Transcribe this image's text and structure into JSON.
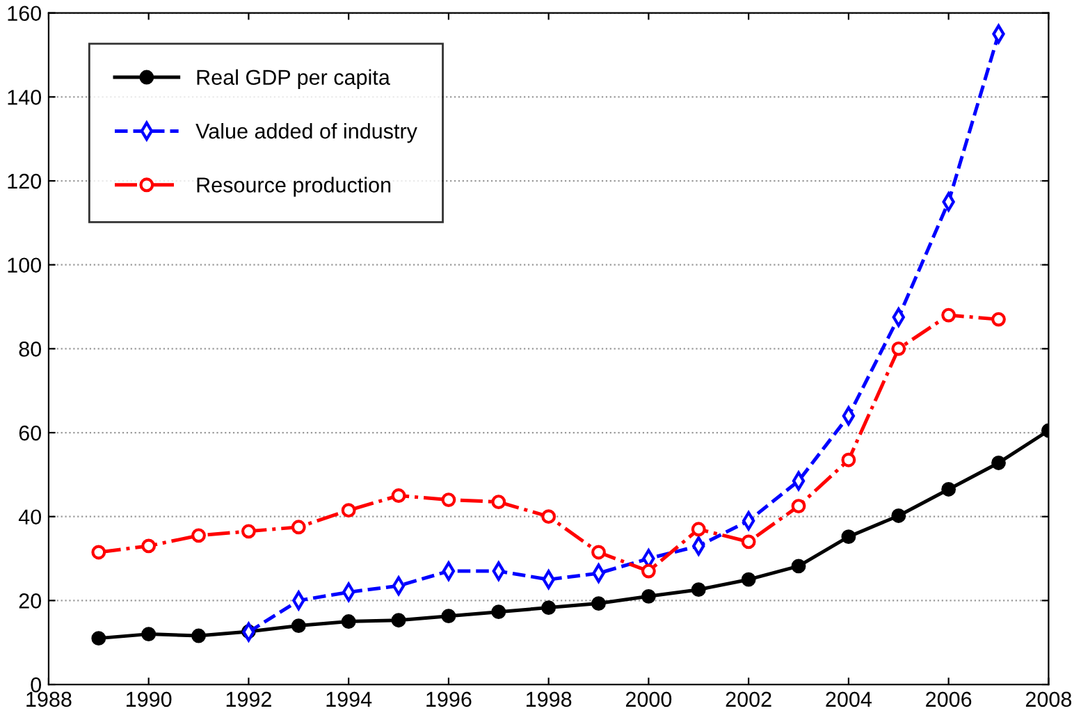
{
  "chart_data": {
    "type": "line",
    "x": [
      1989,
      1990,
      1991,
      1992,
      1993,
      1994,
      1995,
      1996,
      1997,
      1998,
      1999,
      2000,
      2001,
      2002,
      2003,
      2004,
      2005,
      2006,
      2007,
      2008
    ],
    "series": [
      {
        "name": "Real GDP per capita",
        "color": "#000000",
        "marker": "circle",
        "line_style": "solid",
        "values": [
          11,
          12,
          11.6,
          12.6,
          14,
          15,
          15.3,
          16.3,
          17.3,
          18.3,
          19.3,
          21,
          22.6,
          25,
          28.2,
          35.2,
          40.2,
          46.5,
          52.8,
          60.5
        ]
      },
      {
        "name": "Value added of industry",
        "color": "#0000ff",
        "marker": "diamond",
        "line_style": "dashed",
        "values": [
          null,
          null,
          null,
          12.5,
          20,
          22,
          23.5,
          27,
          27,
          25,
          26.5,
          30,
          33,
          39,
          48.5,
          64,
          87.5,
          115,
          155,
          null
        ]
      },
      {
        "name": "Resource production",
        "color": "#ff0000",
        "marker": "circle",
        "line_style": "dashdot",
        "values": [
          31.5,
          33,
          35.5,
          36.5,
          37.5,
          41.5,
          45,
          44,
          43.5,
          40,
          31.5,
          27,
          37,
          34,
          42.5,
          53.5,
          80,
          88,
          87,
          null
        ]
      }
    ],
    "xlim": [
      1988,
      2008
    ],
    "xticks": [
      1988,
      1990,
      1992,
      1994,
      1996,
      1998,
      2000,
      2002,
      2004,
      2006,
      2008
    ],
    "ylim": [
      0,
      160
    ],
    "yticks": [
      0,
      20,
      40,
      60,
      80,
      100,
      120,
      140,
      160
    ],
    "grid": "y",
    "legend": "top left"
  }
}
